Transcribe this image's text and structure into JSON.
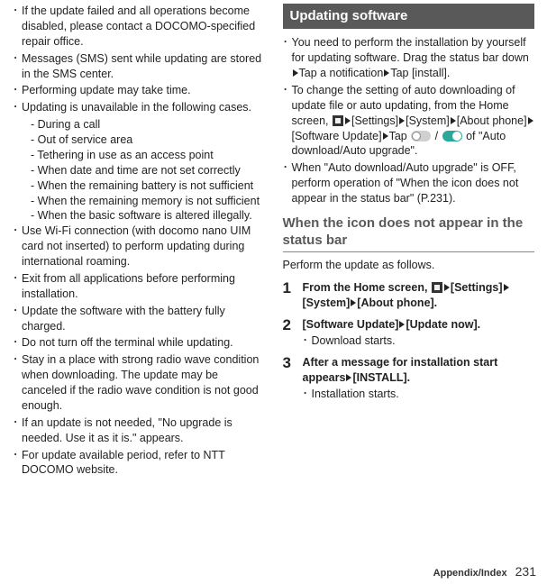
{
  "left": {
    "bullets": [
      "If the update failed and all operations become disabled, please contact a DOCOMO-specified repair office.",
      "Messages (SMS) sent while updating are stored in the SMS center.",
      "Performing update may take time.",
      "Updating is unavailable in the following cases.",
      "Use Wi-Fi connection (with docomo nano UIM card not inserted) to perform updating during international roaming.",
      "Exit from all applications before performing installation.",
      "Update the software with the battery fully charged.",
      "Do not turn off the terminal while updating.",
      "Stay in a place with strong radio wave condition when downloading. The update may be canceled if the radio wave condition is not good enough.",
      "If an update is not needed, \"No upgrade is needed. Use it as it is.\" appears.",
      "For update available period, refer to NTT DOCOMO website."
    ],
    "sub_cases": [
      "During a call",
      "Out of service area",
      "Tethering in use as an access point",
      "When date and time are not set correctly",
      "When the remaining battery is not sufficient",
      "When the remaining memory is not sufficient",
      "When the basic software is altered illegally."
    ]
  },
  "right": {
    "heading": "Updating software",
    "bullets": [
      {
        "pre": "You need to perform the installation by yourself for updating software. Drag the status bar down",
        "mid1": "Tap a notification",
        "post": "Tap [install]."
      },
      {
        "pre": "To change the setting of auto downloading of update file or auto updating, from the Home screen, ",
        "seq": [
          "[Settings]",
          "[System]",
          "[About phone]",
          "[Software Update]",
          "Tap "
        ],
        "post": " of \"Auto download/Auto upgrade\"."
      },
      {
        "text": "When \"Auto download/Auto upgrade\" is OFF, perform operation of \"When the icon does not appear in the status bar\" (P.231)."
      }
    ],
    "section_title": "When the icon does not appear in the status bar",
    "section_intro": "Perform the update as follows.",
    "steps": [
      {
        "num": "1",
        "pre": "From the Home screen, ",
        "seq": [
          "[Settings]",
          "[System]",
          "[About phone]."
        ]
      },
      {
        "num": "2",
        "pre": "[Software Update]",
        "post": "[Update now].",
        "sub": "Download starts."
      },
      {
        "num": "3",
        "pre": "After a message for installation start appears",
        "post": "[INSTALL].",
        "sub": "Installation starts."
      }
    ]
  },
  "footer": {
    "section": "Appendix/Index",
    "page": "231"
  }
}
